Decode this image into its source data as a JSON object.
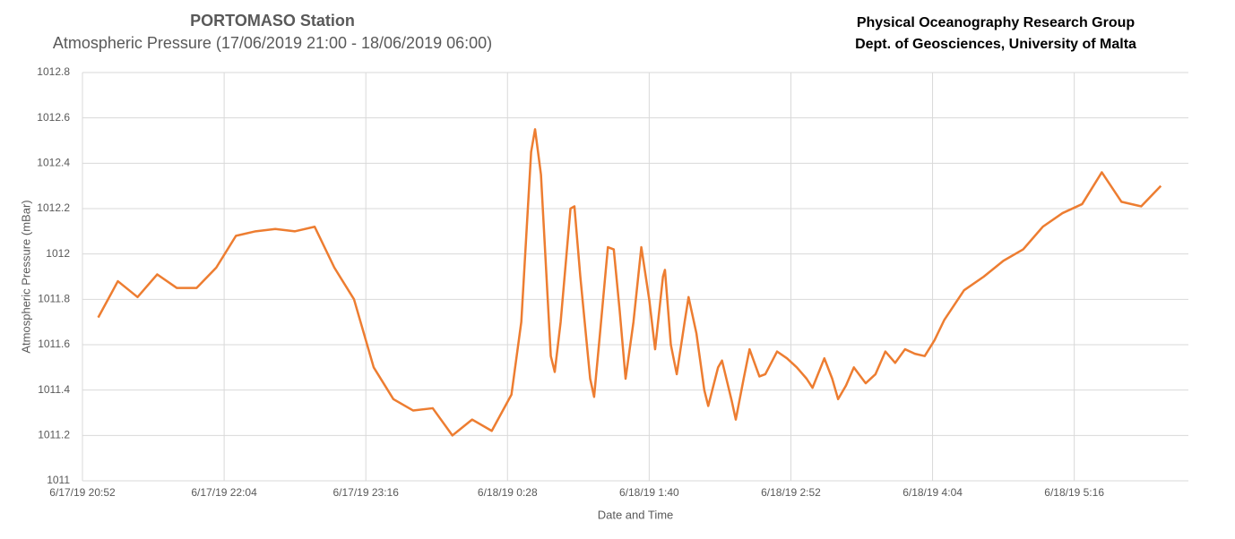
{
  "chart_data": {
    "type": "line",
    "title": "PORTOMASO Station",
    "subtitle": "Atmospheric Pressure (17/06/2019 21:00 - 18/06/2019 06:00)",
    "annotations": [
      "Physical Oceanography Research Group",
      "Dept. of Geosciences, University of Malta"
    ],
    "x_label": "Date and Time",
    "y_label": "Atmospheric Pressure (mBar)",
    "grid": true,
    "xlim": [
      "2019-06-17 20:52",
      "2019-06-18 06:14"
    ],
    "xticks": [
      {
        "value": "2019-06-17 20:52",
        "label": "6/17/19 20:52"
      },
      {
        "value": "2019-06-17 22:04",
        "label": "6/17/19 22:04"
      },
      {
        "value": "2019-06-17 23:16",
        "label": "6/17/19 23:16"
      },
      {
        "value": "2019-06-18 00:28",
        "label": "6/18/19 0:28"
      },
      {
        "value": "2019-06-18 01:40",
        "label": "6/18/19 1:40"
      },
      {
        "value": "2019-06-18 02:52",
        "label": "6/18/19 2:52"
      },
      {
        "value": "2019-06-18 04:04",
        "label": "6/18/19 4:04"
      },
      {
        "value": "2019-06-18 05:16",
        "label": "6/18/19 5:16"
      }
    ],
    "ylim": [
      1011,
      1012.8
    ],
    "yticks": [
      1011,
      1011.2,
      1011.4,
      1011.6,
      1011.8,
      1012,
      1012.2,
      1012.4,
      1012.6,
      1012.8
    ],
    "x": [
      "2019-06-17 21:00",
      "2019-06-17 21:10",
      "2019-06-17 21:20",
      "2019-06-17 21:30",
      "2019-06-17 21:40",
      "2019-06-17 21:50",
      "2019-06-17 22:00",
      "2019-06-17 22:10",
      "2019-06-17 22:20",
      "2019-06-17 22:30",
      "2019-06-17 22:40",
      "2019-06-17 22:50",
      "2019-06-17 23:00",
      "2019-06-17 23:10",
      "2019-06-17 23:20",
      "2019-06-17 23:30",
      "2019-06-17 23:40",
      "2019-06-17 23:50",
      "2019-06-18 00:00",
      "2019-06-18 00:10",
      "2019-06-18 00:20",
      "2019-06-18 00:30",
      "2019-06-18 00:35",
      "2019-06-18 00:40",
      "2019-06-18 00:42",
      "2019-06-18 00:45",
      "2019-06-18 00:50",
      "2019-06-18 00:52",
      "2019-06-18 00:55",
      "2019-06-18 01:00",
      "2019-06-18 01:02",
      "2019-06-18 01:05",
      "2019-06-18 01:10",
      "2019-06-18 01:12",
      "2019-06-18 01:15",
      "2019-06-18 01:19",
      "2019-06-18 01:22",
      "2019-06-18 01:25",
      "2019-06-18 01:28",
      "2019-06-18 01:32",
      "2019-06-18 01:36",
      "2019-06-18 01:40",
      "2019-06-18 01:43",
      "2019-06-18 01:47",
      "2019-06-18 01:48",
      "2019-06-18 01:51",
      "2019-06-18 01:54",
      "2019-06-18 01:58",
      "2019-06-18 02:00",
      "2019-06-18 02:04",
      "2019-06-18 02:08",
      "2019-06-18 02:10",
      "2019-06-18 02:15",
      "2019-06-18 02:17",
      "2019-06-18 02:22",
      "2019-06-18 02:24",
      "2019-06-18 02:28",
      "2019-06-18 02:31",
      "2019-06-18 02:36",
      "2019-06-18 02:39",
      "2019-06-18 02:45",
      "2019-06-18 02:50",
      "2019-06-18 02:55",
      "2019-06-18 03:00",
      "2019-06-18 03:03",
      "2019-06-18 03:09",
      "2019-06-18 03:13",
      "2019-06-18 03:16",
      "2019-06-18 03:20",
      "2019-06-18 03:24",
      "2019-06-18 03:30",
      "2019-06-18 03:35",
      "2019-06-18 03:40",
      "2019-06-18 03:45",
      "2019-06-18 03:50",
      "2019-06-18 03:55",
      "2019-06-18 04:00",
      "2019-06-18 04:05",
      "2019-06-18 04:10",
      "2019-06-18 04:20",
      "2019-06-18 04:30",
      "2019-06-18 04:40",
      "2019-06-18 04:50",
      "2019-06-18 05:00",
      "2019-06-18 05:10",
      "2019-06-18 05:20",
      "2019-06-18 05:30",
      "2019-06-18 05:40",
      "2019-06-18 05:50",
      "2019-06-18 06:00"
    ],
    "series": [
      {
        "name": "Atmospheric Pressure",
        "color": "#ed7d31",
        "values": [
          1011.72,
          1011.88,
          1011.81,
          1011.91,
          1011.85,
          1011.85,
          1011.94,
          1012.08,
          1012.1,
          1012.11,
          1012.1,
          1012.12,
          1011.94,
          1011.8,
          1011.5,
          1011.36,
          1011.31,
          1011.32,
          1011.2,
          1011.27,
          1011.22,
          1011.38,
          1011.7,
          1012.45,
          1012.55,
          1012.35,
          1011.55,
          1011.48,
          1011.7,
          1012.2,
          1012.21,
          1011.9,
          1011.45,
          1011.37,
          1011.65,
          1012.03,
          1012.02,
          1011.75,
          1011.45,
          1011.7,
          1012.03,
          1011.8,
          1011.58,
          1011.9,
          1011.93,
          1011.6,
          1011.47,
          1011.7,
          1011.81,
          1011.65,
          1011.4,
          1011.33,
          1011.5,
          1011.53,
          1011.35,
          1011.27,
          1011.45,
          1011.58,
          1011.46,
          1011.47,
          1011.57,
          1011.54,
          1011.5,
          1011.45,
          1011.41,
          1011.54,
          1011.45,
          1011.36,
          1011.42,
          1011.5,
          1011.43,
          1011.47,
          1011.57,
          1011.52,
          1011.58,
          1011.56,
          1011.55,
          1011.62,
          1011.71,
          1011.84,
          1011.9,
          1011.97,
          1012.02,
          1012.12,
          1012.18,
          1012.22,
          1012.36,
          1012.23,
          1012.21,
          1012.3
        ]
      }
    ]
  }
}
